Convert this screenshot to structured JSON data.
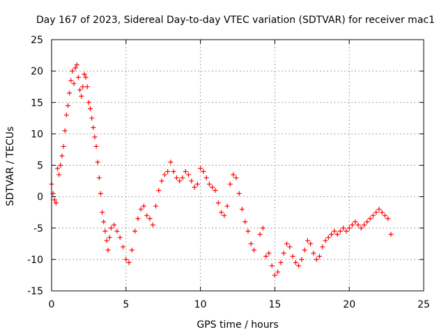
{
  "chart_data": {
    "type": "scatter",
    "title": "Day 167 of 2023, Sidereal Day-to-day VTEC variation (SDTVAR) for receiver mac1",
    "xlabel": "GPS time / hours",
    "ylabel": "SDTVAR / TECUs",
    "xlim": [
      0,
      25
    ],
    "ylim": [
      -15,
      25
    ],
    "x_ticks": [
      "0",
      "5",
      "10",
      "15",
      "20",
      "25"
    ],
    "y_ticks": [
      "-15",
      "-10",
      "-5",
      "0",
      "5",
      "10",
      "15",
      "20",
      "25"
    ],
    "grid": true,
    "marker": "+",
    "series": [
      {
        "name": "SDTVAR",
        "color": "#ff0000",
        "x": [
          0.0,
          0.1,
          0.2,
          0.3,
          0.4,
          0.5,
          0.6,
          0.7,
          0.8,
          0.9,
          1.0,
          1.1,
          1.2,
          1.3,
          1.4,
          1.5,
          1.6,
          1.7,
          1.8,
          1.9,
          2.0,
          2.1,
          2.2,
          2.3,
          2.4,
          2.5,
          2.6,
          2.7,
          2.8,
          2.9,
          3.0,
          3.1,
          3.2,
          3.3,
          3.4,
          3.5,
          3.6,
          3.7,
          3.8,
          3.9,
          4.0,
          4.2,
          4.4,
          4.6,
          4.8,
          5.0,
          5.2,
          5.4,
          5.6,
          5.8,
          6.0,
          6.2,
          6.4,
          6.6,
          6.8,
          7.0,
          7.2,
          7.4,
          7.6,
          7.8,
          8.0,
          8.2,
          8.4,
          8.6,
          8.8,
          9.0,
          9.2,
          9.4,
          9.6,
          9.8,
          10.0,
          10.2,
          10.4,
          10.6,
          10.8,
          11.0,
          11.2,
          11.4,
          11.6,
          11.8,
          12.0,
          12.2,
          12.4,
          12.6,
          12.8,
          13.0,
          13.2,
          13.4,
          13.6,
          14.0,
          14.2,
          14.4,
          14.6,
          14.8,
          15.0,
          15.2,
          15.4,
          15.6,
          15.8,
          16.0,
          16.2,
          16.4,
          16.6,
          16.8,
          17.0,
          17.2,
          17.4,
          17.6,
          17.8,
          18.0,
          18.2,
          18.4,
          18.6,
          18.8,
          19.0,
          19.2,
          19.4,
          19.6,
          19.8,
          20.0,
          20.2,
          20.4,
          20.6,
          20.8,
          21.0,
          21.2,
          21.4,
          21.6,
          21.8,
          22.0,
          22.2,
          22.4,
          22.6,
          22.8
        ],
        "y": [
          2.0,
          0.5,
          -0.5,
          -1.0,
          4.5,
          3.5,
          5.0,
          6.5,
          8.0,
          10.5,
          13.0,
          14.5,
          16.5,
          18.5,
          20.0,
          18.0,
          20.5,
          21.0,
          19.0,
          17.0,
          16.0,
          17.5,
          19.5,
          19.0,
          17.5,
          15.0,
          14.0,
          12.5,
          11.0,
          9.5,
          8.0,
          5.5,
          3.0,
          0.5,
          -2.5,
          -4.0,
          -5.5,
          -7.0,
          -8.5,
          -6.5,
          -5.0,
          -4.5,
          -5.5,
          -6.5,
          -8.0,
          -10.0,
          -10.5,
          -8.5,
          -5.5,
          -3.5,
          -2.0,
          -1.5,
          -3.0,
          -3.5,
          -4.5,
          -1.5,
          1.0,
          2.5,
          3.5,
          4.0,
          5.5,
          4.0,
          3.0,
          2.5,
          3.0,
          4.0,
          3.5,
          2.5,
          1.5,
          2.0,
          4.5,
          4.0,
          3.0,
          2.0,
          1.5,
          1.0,
          -1.0,
          -2.5,
          -3.0,
          -1.5,
          2.0,
          3.5,
          3.0,
          0.5,
          -2.0,
          -4.0,
          -5.5,
          -7.5,
          -8.5,
          -6.0,
          -5.0,
          -9.5,
          -9.0,
          -11.0,
          -12.5,
          -12.0,
          -10.5,
          -9.0,
          -7.5,
          -8.0,
          -9.5,
          -10.5,
          -11.0,
          -10.0,
          -8.5,
          -7.0,
          -7.5,
          -9.0,
          -10.0,
          -9.5,
          -8.0,
          -7.0,
          -6.5,
          -6.0,
          -5.5,
          -6.0,
          -5.5,
          -5.0,
          -5.5,
          -5.0,
          -4.5,
          -4.0,
          -4.5,
          -5.0,
          -4.5,
          -4.0,
          -3.5,
          -3.0,
          -2.5,
          -2.0,
          -2.5,
          -3.0,
          -3.5,
          -6.0
        ]
      }
    ]
  }
}
